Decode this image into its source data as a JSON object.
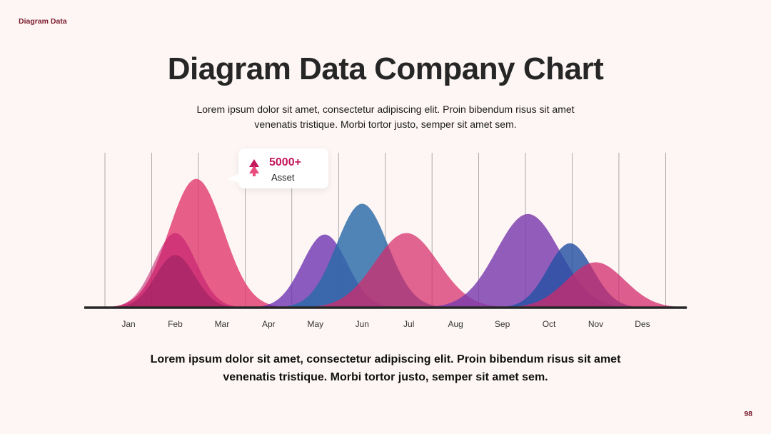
{
  "header": {
    "corner_label": "Diagram Data",
    "page_number": "98"
  },
  "title": "Diagram Data Company Chart",
  "subtitle": "Lorem ipsum dolor sit amet, consectetur adipiscing elit. Proin bibendum risus sit amet venenatis tristique. Morbi tortor justo, semper sit amet sem.",
  "footer_text": "Lorem ipsum dolor sit amet, consectetur adipiscing elit. Proin bibendum risus sit amet venenatis tristique. Morbi tortor justo, semper sit amet sem.",
  "callout": {
    "value": "5000+",
    "label": "Asset",
    "icon": "double-arrow-up-icon",
    "color": "#c2185b"
  },
  "chart_data": {
    "type": "area",
    "categories": [
      "Jan",
      "Feb",
      "Mar",
      "Apr",
      "May",
      "Jun",
      "Jul",
      "Aug",
      "Sep",
      "Oct",
      "Nov",
      "Des"
    ],
    "grid": "vertical",
    "peaks": [
      {
        "center": 1.45,
        "height": 0.88,
        "width": 0.58,
        "color": "#e0336a",
        "opacity": 0.78
      },
      {
        "center": 1.0,
        "height": 0.51,
        "width": 0.45,
        "color": "#c0156a",
        "opacity": 0.55
      },
      {
        "center": 1.0,
        "height": 0.36,
        "width": 0.42,
        "color": "#8e1a5a",
        "opacity": 0.5
      },
      {
        "center": 4.2,
        "height": 0.5,
        "width": 0.48,
        "color": "#6a2fb0",
        "opacity": 0.78
      },
      {
        "center": 5.0,
        "height": 0.71,
        "width": 0.55,
        "color": "#2a6aa8",
        "opacity": 0.82
      },
      {
        "center": 5.95,
        "height": 0.51,
        "width": 0.68,
        "color": "#d6296a",
        "opacity": 0.72
      },
      {
        "center": 8.55,
        "height": 0.64,
        "width": 0.68,
        "color": "#7a3aad",
        "opacity": 0.82
      },
      {
        "center": 9.45,
        "height": 0.44,
        "width": 0.48,
        "color": "#2450a4",
        "opacity": 0.82
      },
      {
        "center": 10.0,
        "height": 0.31,
        "width": 0.62,
        "color": "#d02a6c",
        "opacity": 0.75
      }
    ],
    "colors": {
      "baseline": "#262626",
      "gridline": "#8a8a8a"
    }
  }
}
